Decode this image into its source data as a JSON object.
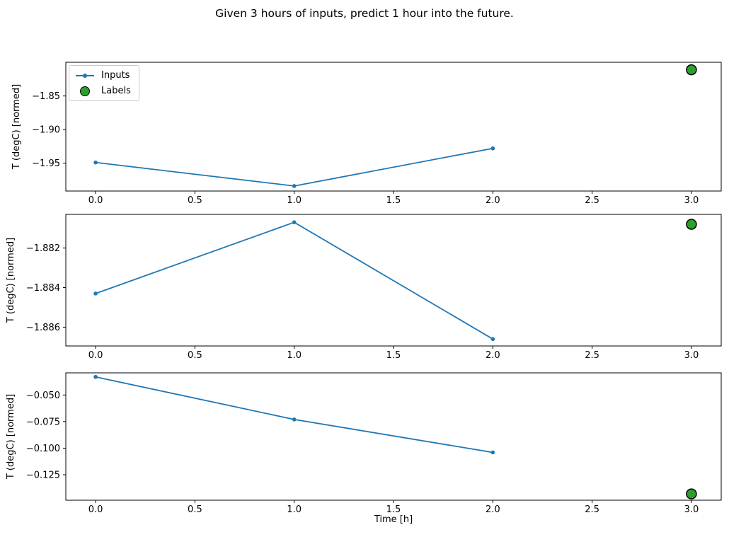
{
  "title": "Given 3 hours of inputs, predict 1 hour into the future.",
  "xlabel": "Time [h]",
  "colors": {
    "inputs_line": "#1f77b4",
    "labels_fill": "#2ca02c",
    "labels_edge": "#000000",
    "spine": "#000000",
    "text": "#000000"
  },
  "legend": {
    "items": [
      {
        "label": "Inputs",
        "swatch": "line-with-dot-icon"
      },
      {
        "label": "Labels",
        "swatch": "green-circle-icon"
      }
    ]
  },
  "chart_data": [
    {
      "type": "line",
      "title": "",
      "ylabel": "T (degC) [normed]",
      "x": [
        0,
        1,
        2
      ],
      "series": [
        {
          "name": "Inputs",
          "values": [
            -1.949,
            -1.984,
            -1.928
          ]
        }
      ],
      "label_point": {
        "name": "Labels",
        "x": 3,
        "y": -1.811
      },
      "xticks": {
        "values": [
          0,
          0.5,
          1,
          1.5,
          2,
          2.5,
          3
        ],
        "labels": [
          "0.0",
          "0.5",
          "1.0",
          "1.5",
          "2.0",
          "2.5",
          "3.0"
        ]
      },
      "yticks": {
        "values": [
          -1.85,
          -1.9,
          -1.95
        ],
        "labels": [
          "−1.85",
          "−1.90",
          "−1.95"
        ]
      },
      "xlim": [
        -0.15,
        3.15
      ],
      "ylim": [
        -1.9915,
        -1.7998
      ],
      "grid": false,
      "legend_position": "upper-left"
    },
    {
      "type": "line",
      "title": "",
      "ylabel": "T (degC) [normed]",
      "x": [
        0,
        1,
        2
      ],
      "series": [
        {
          "name": "Inputs",
          "values": [
            -1.8843,
            -1.8807,
            -1.8866
          ]
        }
      ],
      "label_point": {
        "name": "Labels",
        "x": 3,
        "y": -1.8808
      },
      "xticks": {
        "values": [
          0,
          0.5,
          1,
          1.5,
          2,
          2.5,
          3
        ],
        "labels": [
          "0.0",
          "0.5",
          "1.0",
          "1.5",
          "2.0",
          "2.5",
          "3.0"
        ]
      },
      "yticks": {
        "values": [
          -1.882,
          -1.884,
          -1.886
        ],
        "labels": [
          "−1.882",
          "−1.884",
          "−1.886"
        ]
      },
      "xlim": [
        -0.15,
        3.15
      ],
      "ylim": [
        -1.88695,
        -1.8803
      ],
      "grid": false,
      "legend_position": "none"
    },
    {
      "type": "line",
      "title": "",
      "ylabel": "T (degC) [normed]",
      "x": [
        0,
        1,
        2
      ],
      "series": [
        {
          "name": "Inputs",
          "values": [
            -0.033,
            -0.073,
            -0.104
          ]
        }
      ],
      "label_point": {
        "name": "Labels",
        "x": 3,
        "y": -0.143
      },
      "xticks": {
        "values": [
          0,
          0.5,
          1,
          1.5,
          2,
          2.5,
          3
        ],
        "labels": [
          "0.0",
          "0.5",
          "1.0",
          "1.5",
          "2.0",
          "2.5",
          "3.0"
        ]
      },
      "yticks": {
        "values": [
          -0.05,
          -0.075,
          -0.1,
          -0.125
        ],
        "labels": [
          "−0.050",
          "−0.075",
          "−0.100",
          "−0.125"
        ]
      },
      "xlim": [
        -0.15,
        3.15
      ],
      "ylim": [
        -0.14894,
        -0.02919
      ],
      "grid": false,
      "legend_position": "none"
    }
  ]
}
